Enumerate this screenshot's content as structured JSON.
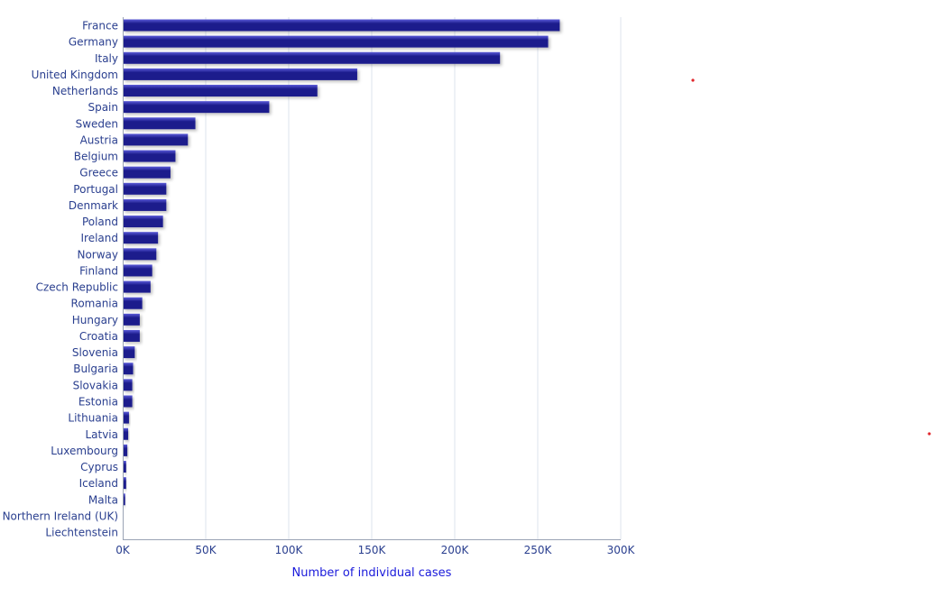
{
  "chart_data": {
    "type": "bar",
    "orientation": "horizontal",
    "title": "",
    "xlabel": "Number of individual cases",
    "ylabel": "",
    "xlim": [
      0,
      300000
    ],
    "xticks": [
      0,
      50000,
      100000,
      150000,
      200000,
      250000,
      300000
    ],
    "xtick_labels": [
      "0K",
      "50K",
      "100K",
      "150K",
      "200K",
      "250K",
      "300K"
    ],
    "grid": "vertical",
    "legend": "none",
    "bar_color": "#1c1c8c",
    "bar_highlight_color": "#5a5ad8",
    "tick_color": "#2a3f8f",
    "xlabel_color": "#1a1adb",
    "grid_color": "#dde3ee",
    "categories": [
      "France",
      "Germany",
      "Italy",
      "United Kingdom",
      "Netherlands",
      "Spain",
      "Sweden",
      "Austria",
      "Belgium",
      "Greece",
      "Portugal",
      "Denmark",
      "Poland",
      "Ireland",
      "Norway",
      "Finland",
      "Czech Republic",
      "Romania",
      "Hungary",
      "Croatia",
      "Slovenia",
      "Bulgaria",
      "Slovakia",
      "Estonia",
      "Lithuania",
      "Latvia",
      "Luxembourg",
      "Cyprus",
      "Iceland",
      "Malta",
      "Northern Ireland (UK)",
      "Liechtenstein"
    ],
    "values": [
      263000,
      256000,
      227000,
      141000,
      117000,
      88000,
      43500,
      39000,
      31500,
      28500,
      26000,
      26000,
      24000,
      21000,
      20000,
      17500,
      16500,
      11500,
      10000,
      10000,
      7000,
      6000,
      5500,
      5500,
      3500,
      3000,
      2500,
      1800,
      1800,
      1200,
      0,
      0
    ]
  }
}
